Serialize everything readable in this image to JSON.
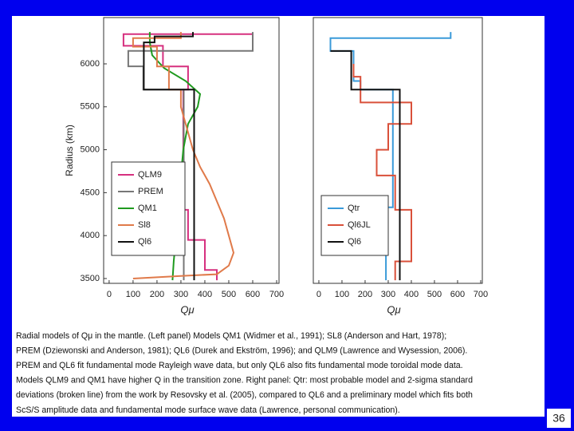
{
  "chart_data": [
    {
      "type": "line",
      "x_label": "Qμ",
      "y_label": "Radius (km)",
      "xlim": [
        -23,
        710
      ],
      "ylim": [
        3444,
        6539
      ],
      "xticks": [
        0,
        100,
        200,
        300,
        400,
        500,
        600,
        700
      ],
      "yticks": [
        3500,
        4000,
        4500,
        5000,
        5500,
        6000
      ],
      "legend": "lower left",
      "series": [
        {
          "name": "QLM9",
          "color": "#d6307f",
          "x": [
            600,
            60,
            60,
            225,
            225,
            330,
            330,
            310,
            310,
            330,
            330,
            400,
            400,
            450,
            450
          ],
          "values": [
            6346,
            6346,
            6210,
            6210,
            5970,
            5970,
            5700,
            5700,
            4300,
            4300,
            3950,
            3950,
            3600,
            3600,
            3480
          ]
        },
        {
          "name": "PREM",
          "color": "#777777",
          "x": [
            600,
            600,
            80,
            80,
            143,
            143,
            312,
            312
          ],
          "values": [
            6371,
            6151,
            6151,
            5971,
            5971,
            5701,
            5701,
            3480
          ]
        },
        {
          "name": "QM1",
          "color": "#1f9a1f",
          "x": [
            170,
            170,
            180,
            230,
            320,
            380,
            370,
            330,
            310,
            300,
            290,
            280,
            270,
            265
          ],
          "values": [
            6371,
            6250,
            6100,
            5950,
            5800,
            5650,
            5500,
            5300,
            5000,
            4700,
            4400,
            4000,
            3700,
            3480
          ]
        },
        {
          "name": "Sl8",
          "color": "#e07a4a",
          "x": [
            300,
            300,
            100,
            100,
            200,
            200,
            250,
            250,
            300,
            300,
            350,
            380,
            420,
            450,
            480,
            500,
            520,
            500,
            450,
            300,
            100
          ],
          "values": [
            6371,
            6300,
            6300,
            6200,
            6200,
            5970,
            5970,
            5700,
            5700,
            5500,
            5000,
            4800,
            4600,
            4400,
            4200,
            4000,
            3800,
            3650,
            3550,
            3530,
            3500
          ]
        },
        {
          "name": "Ql6",
          "color": "#111111",
          "x": [
            350,
            350,
            190,
            190,
            145,
            145,
            355,
            355
          ],
          "values": [
            6371,
            6320,
            6320,
            6250,
            6250,
            5700,
            5700,
            3480
          ]
        }
      ]
    },
    {
      "type": "line",
      "x_label": "Qμ",
      "xlim": [
        -24,
        707
      ],
      "ylim": [
        3444,
        6539
      ],
      "xticks": [
        0,
        100,
        200,
        300,
        400,
        500,
        600,
        700
      ],
      "legend": "lower left",
      "series": [
        {
          "name": "Qtr",
          "color": "#3a9ad9",
          "x": [
            570,
            570,
            50,
            50,
            150,
            150,
            180,
            180,
            320,
            320,
            290,
            290
          ],
          "values": [
            6371,
            6300,
            6300,
            6150,
            6150,
            5800,
            5800,
            5700,
            5700,
            4330,
            4330,
            3480
          ]
        },
        {
          "name": "Ql6JL",
          "color": "#d9503a",
          "x": [
            150,
            150,
            180,
            180,
            400,
            400,
            300,
            300,
            250,
            250,
            330,
            330,
            400,
            400,
            330,
            330
          ],
          "values": [
            6000,
            5850,
            5850,
            5550,
            5550,
            5300,
            5300,
            5000,
            5000,
            4700,
            4700,
            4300,
            4300,
            3700,
            3700,
            3480
          ]
        },
        {
          "name": "Ql6",
          "color": "#111111",
          "x": [
            50,
            140,
            140,
            350,
            350
          ],
          "values": [
            6150,
            6150,
            5700,
            5700,
            3480
          ]
        }
      ]
    }
  ],
  "caption": [
    "Radial models of Qμ in the mantle. (Left panel) Models QM1 (Widmer et al., 1991); SL8 (Anderson and Hart, 1978);",
    "PREM (Dziewonski and Anderson, 1981); QL6 (Durek and Ekström, 1996); and QLM9 (Lawrence and Wysession, 2006).",
    "PREM and QL6 fit fundamental mode Rayleigh wave data, but only QL6 also fits fundamental mode toroidal mode data.",
    "Models QLM9 and QM1 have higher Q in the transition zone. Right panel: Qtr: most probable model and 2-sigma standard",
    "deviations (broken line) from the work by Resovsky et al. (2005), compared to QL6 and a preliminary model which fits both",
    "ScS/S amplitude data and fundamental mode surface wave data (Lawrence, personal communication)."
  ],
  "page_number": "36"
}
